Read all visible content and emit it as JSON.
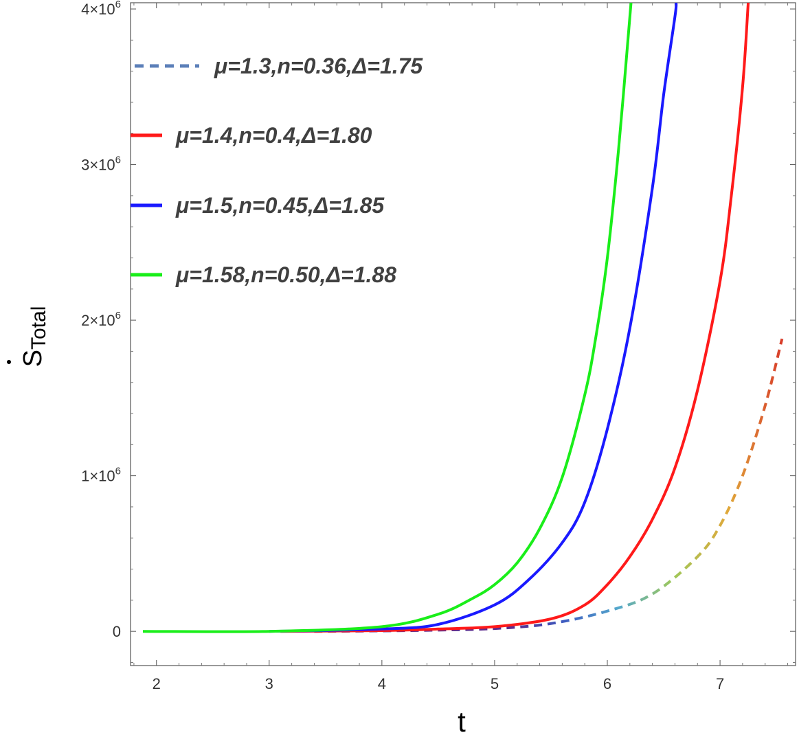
{
  "chart_data": {
    "type": "line",
    "xlabel": "t",
    "ylabel_main": "S",
    "ylabel_sub": "Total",
    "xlim": [
      1.77,
      7.67
    ],
    "ylim": [
      -220000,
      4040000
    ],
    "xticks": [
      {
        "value": 2,
        "label": "2"
      },
      {
        "value": 3,
        "label": "3"
      },
      {
        "value": 4,
        "label": "4"
      },
      {
        "value": 5,
        "label": "5"
      },
      {
        "value": 6,
        "label": "6"
      },
      {
        "value": 7,
        "label": "7"
      }
    ],
    "yticks": [
      {
        "value": 0,
        "label": "0",
        "exp": ""
      },
      {
        "value": 1000000,
        "label": "1×10",
        "exp": "6"
      },
      {
        "value": 2000000,
        "label": "2×10",
        "exp": "6"
      },
      {
        "value": 3000000,
        "label": "3×10",
        "exp": "6"
      },
      {
        "value": 4000000,
        "label": "4×10",
        "exp": "6"
      }
    ],
    "legend_position": "top-left",
    "series": [
      {
        "name": "μ=1.3,n=0.36,Δ=1.75",
        "color": "#5b7fb8",
        "style": "dashed-gradient",
        "gradient": [
          "#5b2a8c",
          "#3d5bc0",
          "#55a8cc",
          "#9fc85a",
          "#e0a83a",
          "#d83a2a"
        ],
        "x": [
          3.4,
          4.0,
          4.5,
          5.0,
          5.5,
          6.0,
          6.4,
          6.8,
          7.0,
          7.2,
          7.4,
          7.55
        ],
        "y": [
          0,
          3000,
          8000,
          18000,
          50000,
          130000,
          240000,
          480000,
          680000,
          1000000,
          1450000,
          1880000
        ]
      },
      {
        "name": "μ=1.4,n=0.4,Δ=1.80",
        "color": "#ff1a1a",
        "style": "solid",
        "x": [
          3.1,
          4.0,
          4.5,
          5.0,
          5.5,
          5.8,
          6.0,
          6.2,
          6.4,
          6.6,
          6.8,
          7.0,
          7.1,
          7.2,
          7.25
        ],
        "y": [
          0,
          5000,
          15000,
          30000,
          80000,
          170000,
          300000,
          480000,
          720000,
          1050000,
          1550000,
          2250000,
          2800000,
          3500000,
          4040000
        ]
      },
      {
        "name": "μ=1.5,n=0.45,Δ=1.85",
        "color": "#1a1aff",
        "style": "solid",
        "x": [
          3.0,
          4.0,
          4.5,
          5.0,
          5.3,
          5.6,
          5.8,
          6.0,
          6.2,
          6.4,
          6.5,
          6.6,
          6.61
        ],
        "y": [
          0,
          15000,
          45000,
          170000,
          330000,
          570000,
          830000,
          1300000,
          1950000,
          2850000,
          3450000,
          3950000,
          4040000
        ]
      },
      {
        "name": "μ=1.58,n=0.50,Δ=1.88",
        "color": "#1aee1a",
        "style": "solid",
        "x": [
          1.88,
          3.0,
          4.0,
          4.5,
          4.8,
          5.0,
          5.2,
          5.4,
          5.6,
          5.8,
          5.9,
          6.0,
          6.1,
          6.2,
          6.21
        ],
        "y": [
          0,
          0,
          30000,
          110000,
          210000,
          300000,
          440000,
          660000,
          990000,
          1520000,
          1900000,
          2400000,
          3100000,
          3950000,
          4040000
        ]
      }
    ]
  }
}
